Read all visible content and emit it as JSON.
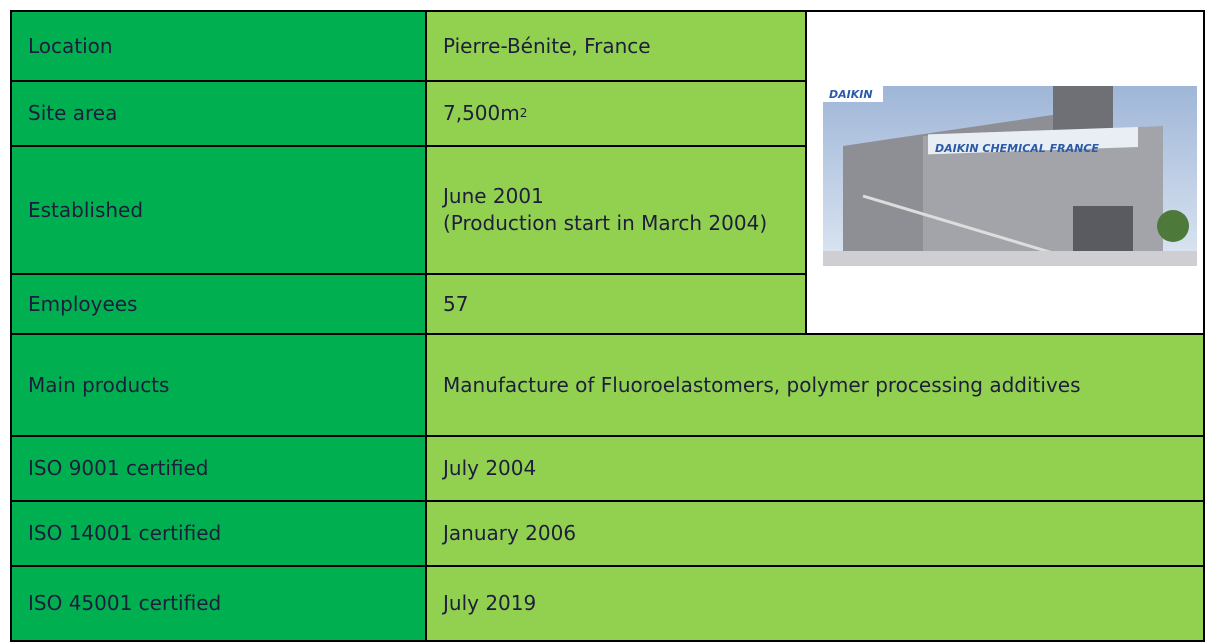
{
  "table": {
    "rows": [
      [
        "Location",
        "Pierre-Bénite, France"
      ],
      [
        "Site area",
        {
          "text": "7,500m",
          "superscript": "2"
        }
      ],
      [
        "Established",
        "June 2001\n(Production start in March 2004)"
      ],
      [
        "Employees",
        "57"
      ],
      [
        "Main products",
        "Manufacture of Fluoroelastomers, polymer processing additives"
      ],
      [
        "ISO 9001 certified",
        "July 2004"
      ],
      [
        "ISO 14001 certified",
        "January 2006"
      ],
      [
        "ISO 45001 certified",
        "July 2019"
      ]
    ]
  },
  "photo": {
    "logo": "DAIKIN",
    "sign": "DAIKIN CHEMICAL FRANCE"
  }
}
